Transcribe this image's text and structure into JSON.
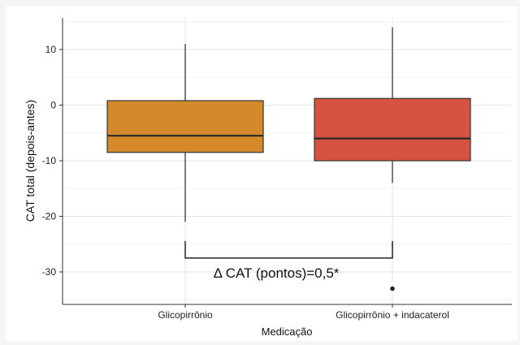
{
  "chart_data": {
    "type": "box",
    "xlabel": "Medicação",
    "ylabel": "CAT total (depois-antes)",
    "ylim": [
      -35,
      16
    ],
    "yticks": [
      10,
      0,
      -10,
      -20,
      -30
    ],
    "ytick_labels": [
      "10",
      "0",
      "-10",
      "-20",
      "-30"
    ],
    "grid": true,
    "categories": [
      "Glicopirrônio",
      "Glicopirrônio + indacaterol"
    ],
    "boxes": [
      {
        "category": "Glicopirrônio",
        "whisker_low": -21,
        "q1": -8.5,
        "median": -5.5,
        "q3": 0.8,
        "whisker_high": 11,
        "outliers": [],
        "color": "#d4892a"
      },
      {
        "category": "Glicopirrônio + indacaterol",
        "whisker_low": -14,
        "q1": -10,
        "median": -6,
        "q3": 1.2,
        "whisker_high": 14,
        "outliers": [
          -33
        ],
        "color": "#d65342"
      }
    ],
    "annotation": "Δ CAT (pontos)=0,5*",
    "bracket_y": -27.5
  }
}
